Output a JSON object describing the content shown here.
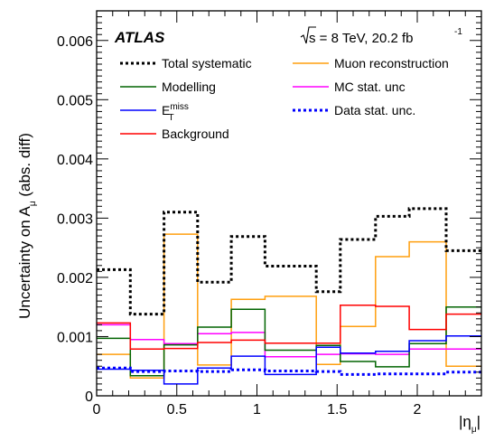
{
  "chart_data": {
    "type": "line",
    "style": "step",
    "ylabel": "Uncertainty on A",
    "ylabel_sub": "μ",
    "ylabel_suffix": " (abs. diff)",
    "xlabel": "|η",
    "xlabel_sub": "μ",
    "xlabel_close": "|",
    "experiment": "ATLAS",
    "energy_label": "s = 8 TeV, 20.2 fb",
    "energy_sup": "-1",
    "xlim": [
      0,
      2.4
    ],
    "ylim": [
      0,
      0.0065
    ],
    "x_ticks": [
      0,
      0.5,
      1,
      1.5,
      2
    ],
    "x_tick_labels": [
      "0",
      "0.5",
      "1",
      "1.5",
      "2"
    ],
    "y_ticks": [
      0,
      0.001,
      0.002,
      0.003,
      0.004,
      0.005,
      0.006
    ],
    "y_tick_labels": [
      "0",
      "0.001",
      "0.002",
      "0.003",
      "0.004",
      "0.005",
      "0.006"
    ],
    "bin_edges": [
      0,
      0.21,
      0.42,
      0.63,
      0.84,
      1.05,
      1.37,
      1.52,
      1.74,
      1.95,
      2.18,
      2.4
    ],
    "series": [
      {
        "name": "Total systematic",
        "color": "#000000",
        "dash": "dot",
        "width": 3,
        "values": [
          0.00213,
          0.00138,
          0.0031,
          0.00192,
          0.00269,
          0.00219,
          0.00176,
          0.00264,
          0.00303,
          0.00316,
          0.00245
        ]
      },
      {
        "name": "Modelling",
        "color": "#006400",
        "dash": "solid",
        "width": 1.5,
        "values": [
          0.00097,
          0.00034,
          0.00086,
          0.00116,
          0.00146,
          0.00077,
          0.00085,
          0.00058,
          0.00049,
          0.00088,
          0.0015
        ]
      },
      {
        "name": "E",
        "name_sub": "T",
        "name_sup": "miss",
        "color": "#0000ff",
        "dash": "solid",
        "width": 1.5,
        "values": [
          0.00045,
          0.00043,
          0.0002,
          0.00047,
          0.00067,
          0.00036,
          0.00082,
          0.00072,
          0.00075,
          0.00093,
          0.00101
        ]
      },
      {
        "name": "Background",
        "color": "#ff0000",
        "dash": "solid",
        "width": 1.5,
        "values": [
          0.00123,
          0.00079,
          0.0008,
          0.0009,
          0.00094,
          0.00089,
          0.00089,
          0.00153,
          0.00151,
          0.00112,
          0.00138
        ]
      },
      {
        "name": "Muon reconstruction",
        "color": "#ff9f0f",
        "dash": "solid",
        "width": 1.5,
        "values": [
          0.0007,
          0.0003,
          0.00273,
          0.00052,
          0.00163,
          0.00168,
          0.00053,
          0.00117,
          0.00235,
          0.0026,
          0.0005
        ]
      },
      {
        "name": "MC stat. unc",
        "color": "#ff00ff",
        "dash": "solid",
        "width": 1.5,
        "values": [
          0.0012,
          0.00095,
          0.00088,
          0.00105,
          0.00107,
          0.00066,
          0.0007,
          0.00071,
          0.0007,
          0.00079,
          0.00079
        ]
      },
      {
        "name": "Data stat. unc.",
        "color": "#0000ff",
        "dash": "dot",
        "width": 3,
        "values": [
          0.00047,
          0.00041,
          0.00042,
          0.00041,
          0.00044,
          0.00042,
          0.00041,
          0.00036,
          0.00037,
          0.00037,
          0.0004
        ]
      }
    ],
    "legend_order_left": [
      0,
      1,
      2,
      3
    ],
    "legend_order_right": [
      4,
      5,
      6
    ]
  }
}
